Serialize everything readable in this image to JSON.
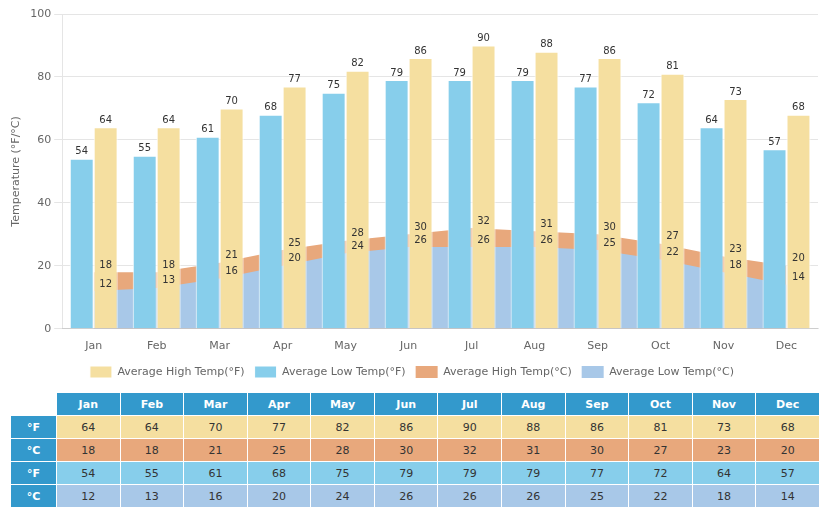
{
  "chart_data": {
    "type": "bar",
    "categories": [
      "Jan",
      "Feb",
      "Mar",
      "Apr",
      "May",
      "Jun",
      "Jul",
      "Aug",
      "Sep",
      "Oct",
      "Nov",
      "Dec"
    ],
    "ylabel": "Temperature (°F/°C)",
    "series": [
      {
        "name": "Average High Temp(°F)",
        "type": "bar",
        "color": "#F5DFA0",
        "values": [
          64,
          64,
          70,
          77,
          82,
          86,
          90,
          88,
          86,
          81,
          73,
          68
        ]
      },
      {
        "name": "Average Low Temp(°F)",
        "type": "bar",
        "color": "#87CEEB",
        "values": [
          54,
          55,
          61,
          68,
          75,
          79,
          79,
          79,
          77,
          72,
          64,
          57
        ]
      },
      {
        "name": "Average High Temp(°C)",
        "type": "area",
        "color": "#E8A87C",
        "values": [
          18,
          18,
          21,
          25,
          28,
          30,
          32,
          31,
          30,
          27,
          23,
          20
        ]
      },
      {
        "name": "Average Low Temp(°C)",
        "type": "area",
        "color": "#A8C8E8",
        "values": [
          12,
          13,
          16,
          20,
          24,
          26,
          26,
          26,
          25,
          22,
          18,
          14
        ]
      }
    ],
    "ylim": [
      0,
      100
    ],
    "yticks": [
      0,
      20,
      40,
      60,
      80,
      100
    ],
    "grid": true,
    "legend": "bottom",
    "data_labels": true,
    "table": {
      "rows": [
        {
          "label": "°F",
          "color": "#F5DFA0",
          "values": [
            64,
            64,
            70,
            77,
            82,
            86,
            90,
            88,
            86,
            81,
            73,
            68
          ]
        },
        {
          "label": "°C",
          "color": "#E8A87C",
          "values": [
            18,
            18,
            21,
            25,
            28,
            30,
            32,
            31,
            30,
            27,
            23,
            20
          ]
        },
        {
          "label": "°F",
          "color": "#87CEEB",
          "values": [
            54,
            55,
            61,
            68,
            75,
            79,
            79,
            79,
            77,
            72,
            64,
            57
          ]
        },
        {
          "label": "°C",
          "color": "#A8C8E8",
          "values": [
            12,
            13,
            16,
            20,
            24,
            26,
            26,
            26,
            25,
            22,
            18,
            14
          ]
        }
      ]
    }
  }
}
